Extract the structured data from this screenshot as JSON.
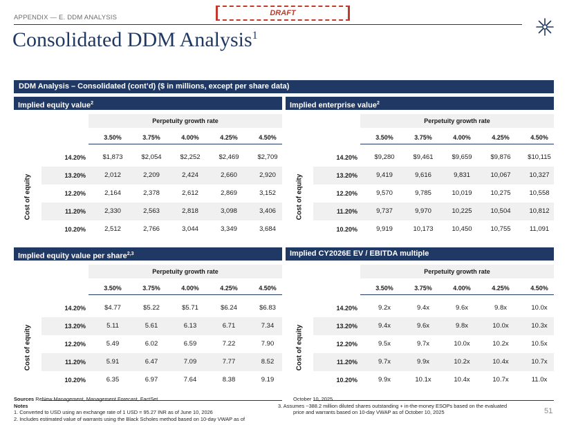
{
  "header": {
    "breadcrumb": "APPENDIX — E. DDM ANALYSIS",
    "draft_label": "DRAFT",
    "title": "Consolidated DDM Analysis",
    "title_sup": "1",
    "page_number": "51",
    "logo_icon": "starburst-logo-icon"
  },
  "band_title": "DDM Analysis – Consolidated (cont’d) ($ in millions, except per share data)",
  "colors": {
    "navy": "#1f3864",
    "shade": "#f0f0f0",
    "draft_red": "#c0392b"
  },
  "tables": [
    {
      "title": "Implied equity value",
      "title_sup": "2",
      "pgr_label": "Perpetuity growth rate",
      "row_axis_label": "Cost of equity",
      "cols": [
        "3.50%",
        "3.75%",
        "4.00%",
        "4.25%",
        "4.50%"
      ],
      "rows": [
        {
          "label": "14.20%",
          "cells": [
            "$1,873",
            "$2,054",
            "$2,252",
            "$2,469",
            "$2,709"
          ]
        },
        {
          "label": "13.20%",
          "cells": [
            "2,012",
            "2,209",
            "2,424",
            "2,660",
            "2,920"
          ]
        },
        {
          "label": "12.20%",
          "cells": [
            "2,164",
            "2,378",
            "2,612",
            "2,869",
            "3,152"
          ]
        },
        {
          "label": "11.20%",
          "cells": [
            "2,330",
            "2,563",
            "2,818",
            "3,098",
            "3,406"
          ]
        },
        {
          "label": "10.20%",
          "cells": [
            "2,512",
            "2,766",
            "3,044",
            "3,349",
            "3,684"
          ]
        }
      ]
    },
    {
      "title": "Implied enterprise value",
      "title_sup": "2",
      "pgr_label": "Perpetuity growth rate",
      "row_axis_label": "Cost of equity",
      "cols": [
        "3.50%",
        "3.75%",
        "4.00%",
        "4.25%",
        "4.50%"
      ],
      "rows": [
        {
          "label": "14.20%",
          "cells": [
            "$9,280",
            "$9,461",
            "$9,659",
            "$9,876",
            "$10,115"
          ]
        },
        {
          "label": "13.20%",
          "cells": [
            "9,419",
            "9,616",
            "9,831",
            "10,067",
            "10,327"
          ]
        },
        {
          "label": "12.20%",
          "cells": [
            "9,570",
            "9,785",
            "10,019",
            "10,275",
            "10,558"
          ]
        },
        {
          "label": "11.20%",
          "cells": [
            "9,737",
            "9,970",
            "10,225",
            "10,504",
            "10,812"
          ]
        },
        {
          "label": "10.20%",
          "cells": [
            "9,919",
            "10,173",
            "10,450",
            "10,755",
            "11,091"
          ]
        }
      ]
    },
    {
      "title": "Implied equity value per share",
      "title_sup": "2,3",
      "pgr_label": "Perpetuity growth rate",
      "row_axis_label": "Cost of equity",
      "cols": [
        "3.50%",
        "3.75%",
        "4.00%",
        "4.25%",
        "4.50%"
      ],
      "rows": [
        {
          "label": "14.20%",
          "cells": [
            "$4.77",
            "$5.22",
            "$5.71",
            "$6.24",
            "$6.83"
          ]
        },
        {
          "label": "13.20%",
          "cells": [
            "5.11",
            "5.61",
            "6.13",
            "6.71",
            "7.34"
          ]
        },
        {
          "label": "12.20%",
          "cells": [
            "5.49",
            "6.02",
            "6.59",
            "7.22",
            "7.90"
          ]
        },
        {
          "label": "11.20%",
          "cells": [
            "5.91",
            "6.47",
            "7.09",
            "7.77",
            "8.52"
          ]
        },
        {
          "label": "10.20%",
          "cells": [
            "6.35",
            "6.97",
            "7.64",
            "8.38",
            "9.19"
          ]
        }
      ]
    },
    {
      "title": "Implied CY2026E EV / EBITDA multiple",
      "title_sup": "",
      "pgr_label": "Perpetuity growth rate",
      "row_axis_label": "Cost of equity",
      "cols": [
        "3.50%",
        "3.75%",
        "4.00%",
        "4.25%",
        "4.50%"
      ],
      "rows": [
        {
          "label": "14.20%",
          "cells": [
            "9.2x",
            "9.4x",
            "9.6x",
            "9.8x",
            "10.0x"
          ]
        },
        {
          "label": "13.20%",
          "cells": [
            "9.4x",
            "9.6x",
            "9.8x",
            "10.0x",
            "10.3x"
          ]
        },
        {
          "label": "12.20%",
          "cells": [
            "9.5x",
            "9.7x",
            "10.0x",
            "10.2x",
            "10.5x"
          ]
        },
        {
          "label": "11.20%",
          "cells": [
            "9.7x",
            "9.9x",
            "10.2x",
            "10.4x",
            "10.7x"
          ]
        },
        {
          "label": "10.20%",
          "cells": [
            "9.9x",
            "10.1x",
            "10.4x",
            "10.7x",
            "11.0x"
          ]
        }
      ]
    }
  ],
  "footer": {
    "sources_label": "Sources",
    "sources_text": "ReNew Management, Management Forecast, FactSet",
    "notes_label": "Notes",
    "note1": "1.     Converted to USD using an exchange rate of 1 USD = 95.27 INR as of June 10, 2026",
    "note2": "2.     Includes estimated value of warrants using the Black Scholes method based on 10-day VWAP as of",
    "note2_cont": "October 10, 2025",
    "note3": "3.     Assumes ~388.2 million diluted shares outstanding + in-the-money ESOPs based on the evaluated",
    "note3_cont": "price and warrants based on 10-day VWAP as of October 10, 2025"
  }
}
